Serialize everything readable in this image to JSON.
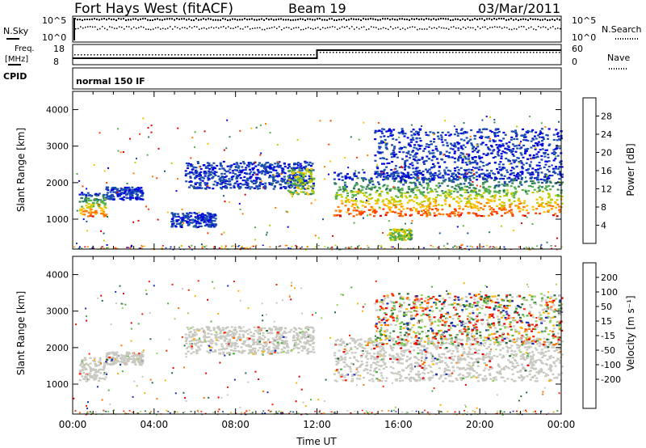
{
  "header": {
    "station": "Fort Hays West (fitACF)",
    "beam": "Beam 19",
    "date": "03/Mar/2011"
  },
  "top_panel": {
    "left_label": "N.Sky",
    "left_ticks": [
      "10^5",
      "10^0"
    ],
    "right_ticks": [
      "10^5",
      "10^0"
    ],
    "right_label": "N.Search"
  },
  "freq_panel": {
    "left_label_1": "Freq.",
    "left_label_2": "[MHz]",
    "left_ticks": [
      "18",
      "8"
    ],
    "right_ticks": [
      "60",
      "0"
    ],
    "right_label": "Nave",
    "freq_step_hour": 12.0
  },
  "cpid": {
    "label": "CPID",
    "value": "normal 150 IF"
  },
  "colors": {
    "power": [
      "#0000e0",
      "#1a4db0",
      "#2e7d5a",
      "#55b04a",
      "#b8d000",
      "#ffc000",
      "#ff7d00",
      "#ff4000",
      "#e00000"
    ],
    "velocity": [
      "#1a2db0",
      "#2a6a3a",
      "#4fb040",
      "#9bd35a",
      "#c8c8c0",
      "#c8c8c0",
      "#ffb000",
      "#ff7000",
      "#ff2000",
      "#e00000"
    ]
  },
  "chart_data": [
    {
      "type": "heatmap",
      "title": "",
      "xlabel": "",
      "ylabel": "Slant Range [km]",
      "xlim": [
        0,
        24
      ],
      "ylim": [
        180,
        4500
      ],
      "x_ticks": [],
      "y_ticks": [
        "1000",
        "2000",
        "3000",
        "4000"
      ],
      "colorbar": {
        "label": "Power [dB]",
        "range": [
          0,
          32
        ],
        "ticks": [
          "4",
          "8",
          "12",
          "16",
          "20",
          "24",
          "28"
        ]
      },
      "echo_regions": [
        {
          "t0": 0.3,
          "t1": 1.6,
          "r_low": 1100,
          "r_high": 1750,
          "level": "high"
        },
        {
          "t0": 1.6,
          "t1": 3.4,
          "r_low": 1550,
          "r_high": 1900,
          "level": "low"
        },
        {
          "t0": 4.8,
          "t1": 7.0,
          "r_low": 800,
          "r_high": 1200,
          "level": "low"
        },
        {
          "t0": 5.5,
          "t1": 11.8,
          "r_low": 1850,
          "r_high": 2600,
          "level": "low"
        },
        {
          "t0": 10.5,
          "t1": 11.8,
          "r_low": 1700,
          "r_high": 2400,
          "level": "mid"
        },
        {
          "t0": 12.8,
          "t1": 24.0,
          "r_low": 1100,
          "r_high": 2300,
          "level": "high"
        },
        {
          "t0": 14.8,
          "t1": 24.0,
          "r_low": 2100,
          "r_high": 3500,
          "level": "low"
        },
        {
          "t0": 15.5,
          "t1": 16.6,
          "r_low": 450,
          "r_high": 750,
          "level": "mid"
        }
      ]
    },
    {
      "type": "heatmap",
      "title": "",
      "xlabel": "Time UT",
      "ylabel": "Slant Range [km]",
      "xlim": [
        0,
        24
      ],
      "ylim": [
        180,
        4500
      ],
      "x_ticks": [
        "00:00",
        "04:00",
        "08:00",
        "12:00",
        "16:00",
        "20:00",
        "00:00"
      ],
      "y_ticks": [
        "1000",
        "2000",
        "3000",
        "4000"
      ],
      "colorbar": {
        "label": "Velocity [m s⁻¹]",
        "range": [
          -250,
          250
        ],
        "ticks": [
          "200",
          "100",
          "50",
          "15",
          "-15",
          "-50",
          "-100",
          "-200"
        ]
      },
      "echo_regions": [
        {
          "t0": 0.3,
          "t1": 1.6,
          "r_low": 1100,
          "r_high": 1750,
          "level": "ground"
        },
        {
          "t0": 1.6,
          "t1": 3.4,
          "r_low": 1550,
          "r_high": 1900,
          "level": "ground"
        },
        {
          "t0": 5.5,
          "t1": 11.8,
          "r_low": 1850,
          "r_high": 2600,
          "level": "ground"
        },
        {
          "t0": 12.8,
          "t1": 24.0,
          "r_low": 1100,
          "r_high": 2300,
          "level": "ground"
        },
        {
          "t0": 14.8,
          "t1": 24.0,
          "r_low": 2100,
          "r_high": 3500,
          "level": "mixed"
        }
      ]
    }
  ]
}
